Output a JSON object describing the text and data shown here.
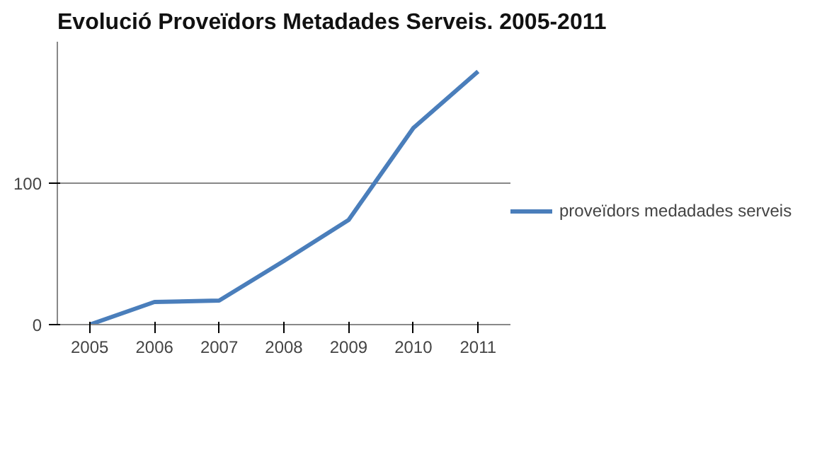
{
  "chart_data": {
    "type": "line",
    "title": "Evolució Proveïdors Metadades Serveis. 2005-2011",
    "categories": [
      "2005",
      "2006",
      "2007",
      "2008",
      "2009",
      "2010",
      "2011"
    ],
    "series": [
      {
        "name": "proveïdors medadades serveis",
        "color": "#4a7ebb",
        "values": [
          0,
          16,
          17,
          45,
          74,
          139,
          179
        ]
      }
    ],
    "ylim": [
      0,
      200
    ],
    "yticks": [
      0,
      100
    ],
    "grid": "y",
    "legend": "right",
    "marker": "none",
    "line_style": "solid"
  }
}
